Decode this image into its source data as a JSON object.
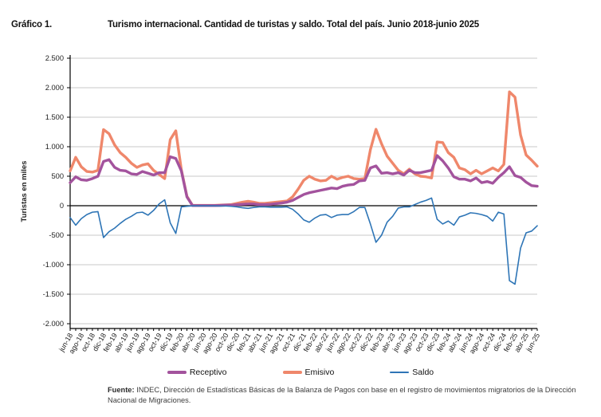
{
  "header": {
    "label": "Gráfico 1.",
    "title": "Turismo internacional. Cantidad de turistas y saldo. Total del país. Junio 2018-junio 2025"
  },
  "chart_data": {
    "type": "line",
    "title": "Turismo internacional. Cantidad de turistas y saldo. Total del país. Junio 2018-junio 2025",
    "xlabel": "",
    "ylabel": "Turistas en miles",
    "ylim": [
      -2000,
      2500
    ],
    "ytick_step": 500,
    "ytick_labels": [
      "2.500",
      "2.000",
      "1.500",
      "1.000",
      "500",
      "0",
      "-500",
      "-1.000",
      "-1.500",
      "-2.000"
    ],
    "grid": true,
    "legend_position": "bottom",
    "x_start": "jun-18",
    "x_end": "jun-25",
    "x_label_every": 2,
    "x_tick_labels": [
      "jun-18",
      "ago-18",
      "oct-18",
      "dic-18",
      "feb-19",
      "abr-19",
      "jun-19",
      "ago-19",
      "oct-19",
      "dic-19",
      "feb-20",
      "abr-20",
      "jun-20",
      "ago-20",
      "oct-20",
      "dic-20",
      "feb-21",
      "abr-21",
      "jun-21",
      "ago-21",
      "oct-21",
      "dic-21",
      "feb-22",
      "abr-22",
      "jun-22",
      "ago-22",
      "oct-22",
      "dic-22",
      "feb-23",
      "abr-23",
      "jun-23",
      "ago-23",
      "oct-23",
      "dic-23",
      "feb-24",
      "abr-24",
      "jun-24",
      "ago-24",
      "oct-24",
      "dic-24",
      "feb-25",
      "abr-25",
      "jun-25"
    ],
    "series": [
      {
        "name": "Receptivo",
        "color": "#a3539d",
        "line_width": 3.4,
        "values": [
          390,
          490,
          440,
          430,
          460,
          500,
          750,
          780,
          650,
          600,
          590,
          540,
          530,
          580,
          550,
          520,
          560,
          560,
          830,
          800,
          590,
          150,
          3,
          3,
          3,
          3,
          3,
          5,
          10,
          10,
          20,
          25,
          30,
          30,
          20,
          20,
          25,
          35,
          45,
          60,
          90,
          140,
          190,
          220,
          240,
          260,
          280,
          300,
          290,
          330,
          350,
          360,
          420,
          430,
          640,
          675,
          550,
          560,
          540,
          560,
          520,
          600,
          560,
          560,
          580,
          600,
          850,
          760,
          640,
          490,
          450,
          450,
          420,
          470,
          390,
          410,
          380,
          480,
          560,
          660,
          510,
          480,
          400,
          340,
          330
        ]
      },
      {
        "name": "Emisivo",
        "color": "#ef876b",
        "line_width": 3.4,
        "values": [
          590,
          820,
          660,
          580,
          570,
          600,
          1290,
          1220,
          1030,
          900,
          820,
          720,
          650,
          690,
          710,
          600,
          530,
          460,
          1120,
          1270,
          610,
          160,
          6,
          6,
          6,
          6,
          6,
          10,
          15,
          20,
          40,
          60,
          75,
          60,
          40,
          40,
          50,
          60,
          70,
          80,
          150,
          280,
          430,
          500,
          450,
          420,
          430,
          500,
          450,
          480,
          500,
          460,
          450,
          460,
          950,
          1295,
          1050,
          840,
          720,
          600,
          540,
          620,
          540,
          500,
          490,
          470,
          1080,
          1070,
          900,
          820,
          640,
          610,
          540,
          600,
          540,
          590,
          640,
          590,
          700,
          1930,
          1840,
          1200,
          860,
          770,
          670
        ]
      },
      {
        "name": "Saldo",
        "color": "#2e75b6",
        "line_width": 1.6,
        "values": [
          -200,
          -330,
          -220,
          -150,
          -110,
          -100,
          -540,
          -440,
          -380,
          -300,
          -230,
          -180,
          -120,
          -110,
          -160,
          -80,
          30,
          100,
          -290,
          -470,
          -20,
          -10,
          -3,
          -3,
          -3,
          -3,
          -3,
          -5,
          -5,
          -10,
          -20,
          -35,
          -45,
          -30,
          -20,
          -20,
          -25,
          -25,
          -25,
          -20,
          -60,
          -140,
          -240,
          -280,
          -210,
          -160,
          -150,
          -200,
          -160,
          -150,
          -150,
          -100,
          -30,
          -30,
          -310,
          -620,
          -500,
          -280,
          -180,
          -40,
          -20,
          -20,
          20,
          60,
          90,
          130,
          -230,
          -310,
          -260,
          -330,
          -190,
          -160,
          -120,
          -130,
          -150,
          -180,
          -260,
          -110,
          -140,
          -1270,
          -1330,
          -720,
          -460,
          -430,
          -340
        ]
      }
    ],
    "colors": {
      "grid": "#c9c9c9",
      "axis": "#000000",
      "tick_text": "#222222"
    }
  },
  "footer": {
    "fuente_label": "Fuente:",
    "fuente_text": " INDEC, Dirección de Estadísticas Básicas de la Balanza de Pagos con base en el registro de movimientos migratorios de la Dirección Nacional de Migraciones."
  }
}
